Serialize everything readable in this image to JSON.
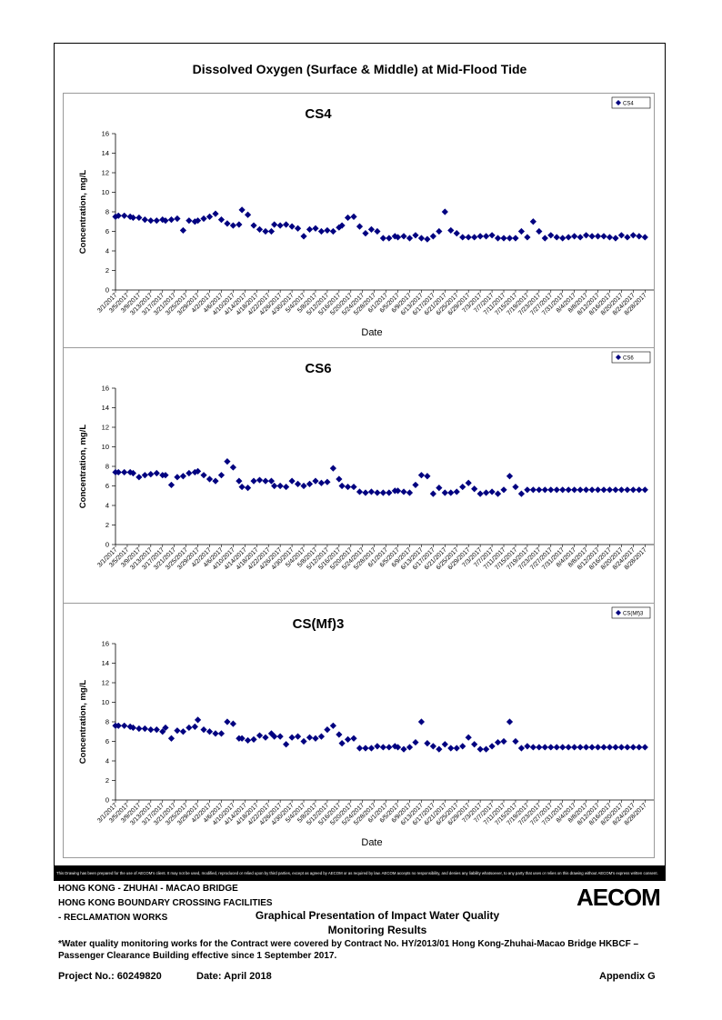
{
  "main_title": "Dissolved Oxygen (Surface & Middle) at Mid-Flood Tide",
  "marker_color": "#000080",
  "x_tick_labels": [
    "3/1/2017",
    "3/5/2017",
    "3/9/2017",
    "3/13/2017",
    "3/17/2017",
    "3/21/2017",
    "3/25/2017",
    "3/29/2017",
    "4/2/2017",
    "4/6/2017",
    "4/10/2017",
    "4/14/2017",
    "4/18/2017",
    "4/22/2017",
    "4/26/2017",
    "4/30/2017",
    "5/4/2017",
    "5/8/2017",
    "5/12/2017",
    "5/16/2017",
    "5/20/2017",
    "5/24/2017",
    "5/28/2017",
    "6/1/2017",
    "6/5/2017",
    "6/9/2017",
    "6/13/2017",
    "6/17/2017",
    "6/21/2017",
    "6/25/2017",
    "6/29/2017",
    "7/3/2017",
    "7/7/2017",
    "7/11/2017",
    "7/15/2017",
    "7/19/2017",
    "7/23/2017",
    "7/27/2017",
    "7/31/2017",
    "8/4/2017",
    "8/8/2017",
    "8/12/2017",
    "8/16/2017",
    "8/20/2017",
    "8/24/2017",
    "8/28/2017"
  ],
  "chart_data": [
    {
      "type": "scatter",
      "title": "CS4",
      "xlabel": "Date",
      "ylabel": "Concentration, mg/L",
      "ylim": [
        0,
        16
      ],
      "yticks": [
        0,
        2,
        4,
        6,
        8,
        10,
        12,
        14,
        16
      ],
      "xlim": [
        "3/1/2017",
        "8/31/2017"
      ],
      "legend": "top-right",
      "grid": false,
      "series": [
        {
          "name": "CS4",
          "x": [
            "3/1/2017",
            "3/2/2017",
            "3/4/2017",
            "3/6/2017",
            "3/7/2017",
            "3/9/2017",
            "3/11/2017",
            "3/13/2017",
            "3/15/2017",
            "3/17/2017",
            "3/18/2017",
            "3/20/2017",
            "3/22/2017",
            "3/24/2017",
            "3/26/2017",
            "3/28/2017",
            "3/29/2017",
            "3/31/2017",
            "4/2/2017",
            "4/4/2017",
            "4/6/2017",
            "4/8/2017",
            "4/10/2017",
            "4/12/2017",
            "4/13/2017",
            "4/15/2017",
            "4/17/2017",
            "4/19/2017",
            "4/21/2017",
            "4/23/2017",
            "4/24/2017",
            "4/26/2017",
            "4/28/2017",
            "4/30/2017",
            "5/2/2017",
            "5/4/2017",
            "5/6/2017",
            "5/8/2017",
            "5/10/2017",
            "5/12/2017",
            "5/14/2017",
            "5/16/2017",
            "5/17/2017",
            "5/19/2017",
            "5/21/2017",
            "5/23/2017",
            "5/25/2017",
            "5/27/2017",
            "5/29/2017",
            "5/31/2017",
            "6/2/2017",
            "6/4/2017",
            "6/5/2017",
            "6/7/2017",
            "6/9/2017",
            "6/11/2017",
            "6/13/2017",
            "6/15/2017",
            "6/17/2017",
            "6/19/2017",
            "6/21/2017",
            "6/23/2017",
            "6/25/2017",
            "6/27/2017",
            "6/29/2017",
            "7/1/2017",
            "7/3/2017",
            "7/5/2017",
            "7/7/2017",
            "7/9/2017",
            "7/11/2017",
            "7/13/2017",
            "7/15/2017",
            "7/17/2017",
            "7/19/2017",
            "7/21/2017",
            "7/23/2017",
            "7/25/2017",
            "7/27/2017",
            "7/29/2017",
            "7/31/2017",
            "8/2/2017",
            "8/4/2017",
            "8/6/2017",
            "8/8/2017",
            "8/10/2017",
            "8/12/2017",
            "8/14/2017",
            "8/16/2017",
            "8/18/2017",
            "8/20/2017",
            "8/22/2017",
            "8/24/2017",
            "8/26/2017",
            "8/28/2017"
          ],
          "values": [
            7.5,
            7.6,
            7.6,
            7.5,
            7.4,
            7.4,
            7.2,
            7.1,
            7.1,
            7.2,
            7.1,
            7.2,
            7.3,
            6.1,
            7.1,
            7.0,
            7.1,
            7.3,
            7.5,
            7.8,
            7.2,
            6.8,
            6.6,
            6.7,
            8.2,
            7.7,
            6.6,
            6.2,
            6.0,
            6.0,
            6.7,
            6.6,
            6.7,
            6.5,
            6.3,
            5.5,
            6.2,
            6.3,
            6.0,
            6.1,
            6.0,
            6.4,
            6.6,
            7.4,
            7.5,
            6.5,
            5.8,
            6.2,
            6.0,
            5.3,
            5.3,
            5.5,
            5.4,
            5.5,
            5.3,
            5.6,
            5.3,
            5.2,
            5.5,
            6.0,
            8.0,
            6.1,
            5.8,
            5.4,
            5.4,
            5.4,
            5.5,
            5.5,
            5.6,
            5.3,
            5.3,
            5.3,
            5.3,
            6.0,
            5.4,
            7.0,
            6.0,
            5.3,
            5.6,
            5.4,
            5.3,
            5.4,
            5.5,
            5.4,
            5.6,
            5.5,
            5.5,
            5.5,
            5.4,
            5.3,
            5.6,
            5.4,
            5.6,
            5.5,
            5.4
          ]
        }
      ]
    },
    {
      "type": "scatter",
      "title": "CS6",
      "xlabel": "",
      "ylabel": "Concentration, mg/L",
      "ylim": [
        0,
        16
      ],
      "yticks": [
        0,
        2,
        4,
        6,
        8,
        10,
        12,
        14,
        16
      ],
      "xlim": [
        "3/1/2017",
        "8/31/2017"
      ],
      "legend": "top-right",
      "grid": false,
      "series": [
        {
          "name": "CS6",
          "x": [
            "3/1/2017",
            "3/2/2017",
            "3/4/2017",
            "3/6/2017",
            "3/7/2017",
            "3/9/2017",
            "3/11/2017",
            "3/13/2017",
            "3/15/2017",
            "3/17/2017",
            "3/18/2017",
            "3/20/2017",
            "3/22/2017",
            "3/24/2017",
            "3/26/2017",
            "3/28/2017",
            "3/29/2017",
            "3/31/2017",
            "4/2/2017",
            "4/4/2017",
            "4/6/2017",
            "4/8/2017",
            "4/10/2017",
            "4/12/2017",
            "4/13/2017",
            "4/15/2017",
            "4/17/2017",
            "4/19/2017",
            "4/21/2017",
            "4/23/2017",
            "4/24/2017",
            "4/26/2017",
            "4/28/2017",
            "4/30/2017",
            "5/2/2017",
            "5/4/2017",
            "5/6/2017",
            "5/8/2017",
            "5/10/2017",
            "5/12/2017",
            "5/14/2017",
            "5/16/2017",
            "5/17/2017",
            "5/19/2017",
            "5/21/2017",
            "5/23/2017",
            "5/25/2017",
            "5/27/2017",
            "5/29/2017",
            "5/31/2017",
            "6/2/2017",
            "6/4/2017",
            "6/5/2017",
            "6/7/2017",
            "6/9/2017",
            "6/11/2017",
            "6/13/2017",
            "6/15/2017",
            "6/17/2017",
            "6/19/2017",
            "6/21/2017",
            "6/23/2017",
            "6/25/2017",
            "6/27/2017",
            "6/29/2017",
            "7/1/2017",
            "7/3/2017",
            "7/5/2017",
            "7/7/2017",
            "7/9/2017",
            "7/11/2017",
            "7/13/2017",
            "7/15/2017",
            "7/17/2017",
            "7/19/2017",
            "7/21/2017",
            "7/23/2017",
            "7/25/2017",
            "7/27/2017",
            "7/29/2017",
            "7/31/2017",
            "8/2/2017",
            "8/4/2017",
            "8/6/2017",
            "8/8/2017",
            "8/10/2017",
            "8/12/2017",
            "8/14/2017",
            "8/16/2017",
            "8/18/2017",
            "8/20/2017",
            "8/22/2017",
            "8/24/2017",
            "8/26/2017",
            "8/28/2017"
          ],
          "values": [
            7.4,
            7.4,
            7.4,
            7.4,
            7.3,
            6.9,
            7.1,
            7.2,
            7.3,
            7.1,
            7.1,
            6.1,
            6.9,
            7.0,
            7.3,
            7.4,
            7.5,
            7.1,
            6.7,
            6.5,
            7.1,
            8.5,
            7.9,
            6.5,
            5.9,
            5.8,
            6.5,
            6.6,
            6.5,
            6.5,
            6.0,
            6.0,
            5.9,
            6.5,
            6.2,
            6.0,
            6.2,
            6.5,
            6.3,
            6.4,
            7.8,
            6.7,
            6.0,
            5.9,
            5.9,
            5.4,
            5.3,
            5.4,
            5.3,
            5.3,
            5.3,
            5.5,
            5.5,
            5.4,
            5.3,
            6.1,
            7.1,
            7.0,
            5.2,
            5.8,
            5.3,
            5.3,
            5.4,
            5.9,
            6.3,
            5.7,
            5.2,
            5.3,
            5.4,
            5.2,
            5.6,
            7.0,
            5.9,
            5.2,
            5.6,
            5.6,
            5.6,
            5.6,
            5.6,
            5.6,
            5.6,
            5.6,
            5.6,
            5.6,
            5.6,
            5.6,
            5.6,
            5.6,
            5.6,
            5.6,
            5.6,
            5.6,
            5.6,
            5.6,
            5.6
          ]
        }
      ]
    },
    {
      "type": "scatter",
      "title": "CS(Mf)3",
      "xlabel": "Date",
      "ylabel": "Concentration, mg/L",
      "ylim": [
        0,
        16
      ],
      "yticks": [
        0,
        2,
        4,
        6,
        8,
        10,
        12,
        14,
        16
      ],
      "xlim": [
        "3/1/2017",
        "8/31/2017"
      ],
      "legend": "top-right",
      "grid": false,
      "series": [
        {
          "name": "CS(Mf)3",
          "x": [
            "3/1/2017",
            "3/2/2017",
            "3/4/2017",
            "3/6/2017",
            "3/7/2017",
            "3/9/2017",
            "3/11/2017",
            "3/13/2017",
            "3/15/2017",
            "3/17/2017",
            "3/18/2017",
            "3/20/2017",
            "3/22/2017",
            "3/24/2017",
            "3/26/2017",
            "3/28/2017",
            "3/29/2017",
            "3/31/2017",
            "4/2/2017",
            "4/4/2017",
            "4/6/2017",
            "4/8/2017",
            "4/10/2017",
            "4/12/2017",
            "4/13/2017",
            "4/15/2017",
            "4/17/2017",
            "4/19/2017",
            "4/21/2017",
            "4/23/2017",
            "4/24/2017",
            "4/26/2017",
            "4/28/2017",
            "4/30/2017",
            "5/2/2017",
            "5/4/2017",
            "5/6/2017",
            "5/8/2017",
            "5/10/2017",
            "5/12/2017",
            "5/14/2017",
            "5/16/2017",
            "5/17/2017",
            "5/19/2017",
            "5/21/2017",
            "5/23/2017",
            "5/25/2017",
            "5/27/2017",
            "5/29/2017",
            "5/31/2017",
            "6/2/2017",
            "6/4/2017",
            "6/5/2017",
            "6/7/2017",
            "6/9/2017",
            "6/11/2017",
            "6/13/2017",
            "6/15/2017",
            "6/17/2017",
            "6/19/2017",
            "6/21/2017",
            "6/23/2017",
            "6/25/2017",
            "6/27/2017",
            "6/29/2017",
            "7/1/2017",
            "7/3/2017",
            "7/5/2017",
            "7/7/2017",
            "7/9/2017",
            "7/11/2017",
            "7/13/2017",
            "7/15/2017",
            "7/17/2017",
            "7/19/2017",
            "7/21/2017",
            "7/23/2017",
            "7/25/2017",
            "7/27/2017",
            "7/29/2017",
            "7/31/2017",
            "8/2/2017",
            "8/4/2017",
            "8/6/2017",
            "8/8/2017",
            "8/10/2017",
            "8/12/2017",
            "8/14/2017",
            "8/16/2017",
            "8/18/2017",
            "8/20/2017",
            "8/22/2017",
            "8/24/2017",
            "8/26/2017",
            "8/28/2017"
          ],
          "values": [
            7.6,
            7.6,
            7.6,
            7.5,
            7.4,
            7.3,
            7.3,
            7.2,
            7.2,
            7.0,
            7.4,
            6.3,
            7.1,
            7.0,
            7.4,
            7.5,
            8.2,
            7.2,
            7.0,
            6.8,
            6.8,
            8.0,
            7.8,
            6.3,
            6.3,
            6.1,
            6.2,
            6.6,
            6.4,
            6.8,
            6.5,
            6.5,
            5.7,
            6.4,
            6.5,
            6.0,
            6.4,
            6.3,
            6.5,
            7.2,
            7.6,
            6.7,
            5.8,
            6.2,
            6.3,
            5.3,
            5.3,
            5.3,
            5.5,
            5.4,
            5.4,
            5.5,
            5.4,
            5.2,
            5.4,
            5.9,
            8.0,
            5.8,
            5.5,
            5.2,
            5.7,
            5.3,
            5.3,
            5.5,
            6.4,
            5.7,
            5.2,
            5.2,
            5.5,
            5.9,
            6.0,
            8.0,
            6.0,
            5.3,
            5.5,
            5.4,
            5.4,
            5.4,
            5.4,
            5.4,
            5.4,
            5.4,
            5.4,
            5.4,
            5.4,
            5.4,
            5.4,
            5.4,
            5.4,
            5.4,
            5.4,
            5.4,
            5.4,
            5.4,
            5.4
          ]
        }
      ]
    }
  ],
  "disclaimer": "This Drawing has been prepared for the use of AECOM's client. It may not be used, modified, reproduced or relied upon by third parties, except as agreed by AECOM or as required by law. AECOM accepts no responsibility, and denies any liability whatsoever, to any party that uses or relies on this drawing without AECOM's express written consent.",
  "header": {
    "line1": "HONG KONG - ZHUHAI - MACAO BRIDGE",
    "line2": "HONG KONG BOUNDARY CROSSING FACILITIES",
    "line3": "- RECLAMATION WORKS",
    "logo": "AECOM",
    "title_line1": "Graphical Presentation of Impact Water Quality",
    "title_line2": "Monitoring Results"
  },
  "note": "*Water quality monitoring works for the Contract were covered by Contract No. HY/2013/01 Hong Kong-Zhuhai-Macao Bridge HKBCF – Passenger Clearance Building effective since 1 September 2017.",
  "footer": {
    "project_no": "Project No.: 60249820",
    "date": "Date: April 2018",
    "appendix": "Appendix G"
  }
}
